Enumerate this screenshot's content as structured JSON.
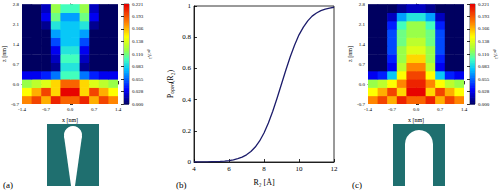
{
  "chart_data": [
    {
      "type": "heatmap",
      "title": "(a)",
      "x_label": "x [nm]",
      "y_label": "z [nm]",
      "x": [
        -1.26,
        -0.98,
        -0.7,
        -0.42,
        -0.14,
        0.14,
        0.42,
        0.7,
        0.98,
        1.26
      ],
      "y": [
        -0.55,
        -0.26,
        0.03,
        0.32,
        0.61,
        0.9,
        1.2,
        1.49,
        1.78,
        2.07,
        2.36,
        2.65
      ],
      "values": [
        [
          0.18,
          0.2,
          0.17,
          0.21,
          0.19,
          0.19,
          0.21,
          0.17,
          0.2,
          0.18
        ],
        [
          0.15,
          0.17,
          0.2,
          0.16,
          0.22,
          0.22,
          0.16,
          0.2,
          0.17,
          0.15
        ],
        [
          0.12,
          0.13,
          0.14,
          0.16,
          0.19,
          0.19,
          0.16,
          0.14,
          0.13,
          0.12
        ],
        [
          0.03,
          0.03,
          0.04,
          0.06,
          0.1,
          0.1,
          0.06,
          0.04,
          0.03,
          0.03
        ],
        [
          0,
          0,
          0,
          0.01,
          0.09,
          0.09,
          0.01,
          0,
          0,
          0
        ],
        [
          0,
          0,
          0,
          0.02,
          0.1,
          0.1,
          0.02,
          0,
          0,
          0
        ],
        [
          0,
          0,
          0,
          0.03,
          0.09,
          0.09,
          0.03,
          0,
          0,
          0
        ],
        [
          0,
          0,
          0,
          0.05,
          0.08,
          0.08,
          0.05,
          0,
          0,
          0
        ],
        [
          0,
          0,
          0,
          0.07,
          0.08,
          0.08,
          0.07,
          0,
          0,
          0
        ],
        [
          0,
          0,
          0.01,
          0.09,
          0.08,
          0.08,
          0.09,
          0.01,
          0,
          0
        ],
        [
          0,
          0,
          0.03,
          0.11,
          0.07,
          0.07,
          0.11,
          0.03,
          0,
          0
        ],
        [
          0,
          0,
          0.02,
          0.12,
          0.1,
          0.1,
          0.12,
          0.02,
          0,
          0
        ]
      ],
      "xlim": [
        -1.4,
        1.4
      ],
      "xticks": [
        -1.4,
        -0.7,
        {
          "value": 0,
          "label": "0.0"
        },
        0.7,
        1.4
      ],
      "ylim": [
        -0.7,
        2.8
      ],
      "yticks": [
        -0.7,
        {
          "value": 0,
          "label": "0.0"
        },
        0.7,
        1.4,
        2.1,
        2.8
      ],
      "colorbar": {
        "label": "ρ/Å³",
        "range": [
          0,
          0.221
        ],
        "ticks": [
          {
            "value": 0,
            "label": "0.000"
          },
          0.028,
          0.055,
          0.083,
          {
            "value": 0.11,
            "label": "0.110"
          },
          0.138,
          0.166,
          0.193,
          0.221
        ]
      }
    },
    {
      "type": "line",
      "title": "(b)",
      "x_label": "R₂ [Å]",
      "y_label": "Pₒₚₑₙ(R₂)",
      "color": "#1c1c6b",
      "x": [
        4,
        4.25,
        4.5,
        4.75,
        5,
        5.25,
        5.5,
        5.75,
        6,
        6.25,
        6.5,
        6.75,
        7,
        7.25,
        7.5,
        7.75,
        8,
        8.25,
        8.5,
        8.75,
        9,
        9.25,
        9.5,
        9.75,
        10,
        10.25,
        10.5,
        10.75,
        11,
        11.25,
        11.5,
        11.75,
        12
      ],
      "values": [
        0,
        0,
        0.001,
        0.001,
        0.002,
        0.003,
        0.004,
        0.006,
        0.009,
        0.014,
        0.021,
        0.031,
        0.046,
        0.067,
        0.096,
        0.135,
        0.186,
        0.25,
        0.325,
        0.41,
        0.5,
        0.59,
        0.675,
        0.75,
        0.815,
        0.865,
        0.905,
        0.935,
        0.955,
        0.97,
        0.98,
        0.987,
        0.992
      ],
      "xlim": [
        4,
        12
      ],
      "xticks": [
        4,
        6,
        8,
        10,
        12
      ],
      "ylim": [
        0,
        1
      ],
      "yticks": [
        0,
        0.2,
        0.4,
        0.6,
        0.8,
        1
      ]
    },
    {
      "type": "heatmap",
      "title": "(c)",
      "x_label": "x [nm]",
      "y_label": "z [nm]",
      "x": [
        -1.26,
        -0.98,
        -0.7,
        -0.42,
        -0.14,
        0.14,
        0.42,
        0.7,
        0.98,
        1.26
      ],
      "y": [
        -0.55,
        -0.26,
        0.03,
        0.32,
        0.61,
        0.9,
        1.2,
        1.49,
        1.78,
        2.07,
        2.36,
        2.65
      ],
      "values": [
        [
          0.18,
          0.2,
          0.17,
          0.21,
          0.19,
          0.19,
          0.21,
          0.17,
          0.2,
          0.18
        ],
        [
          0.15,
          0.17,
          0.2,
          0.16,
          0.22,
          0.22,
          0.16,
          0.2,
          0.17,
          0.15
        ],
        [
          0.12,
          0.13,
          0.15,
          0.18,
          0.21,
          0.21,
          0.18,
          0.15,
          0.13,
          0.12
        ],
        [
          0.03,
          0.04,
          0.08,
          0.15,
          0.2,
          0.2,
          0.15,
          0.08,
          0.04,
          0.03
        ],
        [
          0,
          0,
          0.03,
          0.13,
          0.18,
          0.18,
          0.13,
          0.03,
          0,
          0
        ],
        [
          0,
          0,
          0.04,
          0.12,
          0.16,
          0.16,
          0.12,
          0.04,
          0,
          0
        ],
        [
          0,
          0,
          0.05,
          0.12,
          0.14,
          0.14,
          0.12,
          0.05,
          0,
          0
        ],
        [
          0,
          0,
          0.05,
          0.11,
          0.13,
          0.13,
          0.11,
          0.05,
          0,
          0
        ],
        [
          0,
          0,
          0.05,
          0.11,
          0.12,
          0.12,
          0.11,
          0.05,
          0,
          0
        ],
        [
          0,
          0,
          0.04,
          0.1,
          0.12,
          0.12,
          0.1,
          0.04,
          0,
          0
        ],
        [
          0,
          0,
          0.02,
          0.07,
          0.09,
          0.09,
          0.07,
          0.02,
          0,
          0
        ],
        [
          0,
          0,
          0,
          0.01,
          0.02,
          0.02,
          0.01,
          0,
          0,
          0
        ]
      ],
      "xlim": [
        -1.4,
        1.4
      ],
      "xticks": [
        -1.4,
        -0.7,
        {
          "value": 0,
          "label": "0.0"
        },
        0.7,
        1.4
      ],
      "ylim": [
        -0.7,
        2.8
      ],
      "yticks": [
        -0.7,
        {
          "value": 0,
          "label": "0.0"
        },
        0.7,
        1.4,
        2.1,
        2.8
      ],
      "colorbar": {
        "label": "ρ/Å³",
        "range": [
          0,
          0.221
        ],
        "ticks": [
          {
            "value": 0,
            "label": "0.000"
          },
          0.028,
          0.055,
          0.083,
          {
            "value": 0.11,
            "label": "0.110"
          },
          0.138,
          0.166,
          0.193,
          0.221
        ]
      }
    }
  ]
}
